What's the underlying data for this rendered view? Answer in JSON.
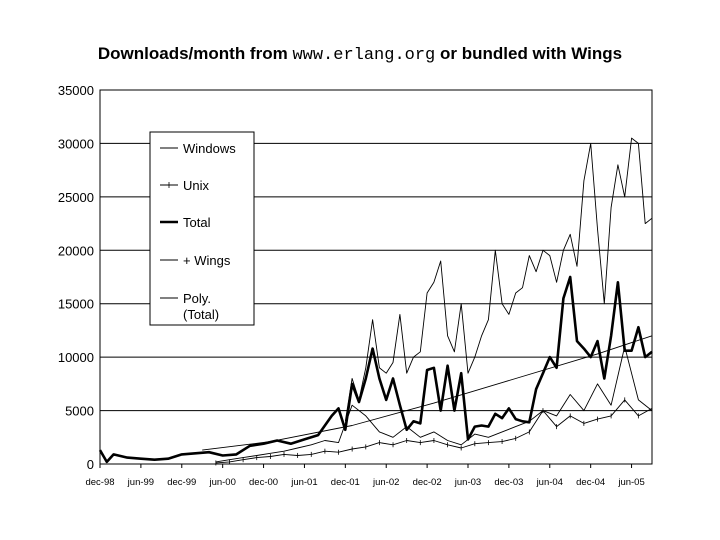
{
  "chart_data": {
    "type": "line",
    "title": {
      "prefix": "Downloads/month from",
      "url": "www.erlang.org",
      "suffix": "or bundled with Wings"
    },
    "xlabel": "",
    "ylabel": "",
    "ylim": [
      0,
      35000
    ],
    "y_ticks": [
      0,
      5000,
      10000,
      15000,
      20000,
      25000,
      30000,
      35000
    ],
    "x_tick_labels": [
      "dec-98",
      "jun-99",
      "dec-99",
      "jun-00",
      "dec-00",
      "jun-01",
      "dec-01",
      "jun-02",
      "dec-02",
      "jun-03",
      "dec-03",
      "jun-04",
      "dec-04",
      "jun-05"
    ],
    "x_range_months": [
      "1998-12",
      "2005-09"
    ],
    "grid": "horizontal",
    "legend_position": "upper-left inside plot",
    "series": [
      {
        "name": "Windows",
        "style": "thin",
        "x": [
          "2000-05",
          "2000-07",
          "2000-09",
          "2000-11",
          "2001-01",
          "2001-03",
          "2001-05",
          "2001-07",
          "2001-09",
          "2001-11",
          "2002-01",
          "2002-03",
          "2002-05",
          "2002-07",
          "2002-09",
          "2002-11",
          "2003-01",
          "2003-03",
          "2003-05",
          "2003-07",
          "2003-09",
          "2003-11",
          "2004-01",
          "2004-03",
          "2004-05",
          "2004-07",
          "2004-09",
          "2004-11",
          "2005-01",
          "2005-03",
          "2005-05",
          "2005-07",
          "2005-09"
        ],
        "values": [
          200,
          400,
          600,
          800,
          1000,
          1200,
          1500,
          1800,
          2200,
          2000,
          5500,
          4500,
          3000,
          2500,
          3500,
          2500,
          3000,
          2200,
          1800,
          2800,
          2500,
          3000,
          3500,
          4000,
          5000,
          4500,
          6500,
          5000,
          7500,
          5500,
          11000,
          6000,
          5000
        ]
      },
      {
        "name": "Unix",
        "style": "thin-marked",
        "x": [
          "2000-05",
          "2000-07",
          "2000-09",
          "2000-11",
          "2001-01",
          "2001-03",
          "2001-05",
          "2001-07",
          "2001-09",
          "2001-11",
          "2002-01",
          "2002-03",
          "2002-05",
          "2002-07",
          "2002-09",
          "2002-11",
          "2003-01",
          "2003-03",
          "2003-05",
          "2003-07",
          "2003-09",
          "2003-11",
          "2004-01",
          "2004-03",
          "2004-05",
          "2004-07",
          "2004-09",
          "2004-11",
          "2005-01",
          "2005-03",
          "2005-05",
          "2005-07",
          "2005-09"
        ],
        "values": [
          100,
          200,
          400,
          600,
          700,
          900,
          800,
          900,
          1200,
          1100,
          1400,
          1600,
          2000,
          1800,
          2200,
          2000,
          2200,
          1800,
          1500,
          1900,
          2000,
          2100,
          2400,
          3000,
          5000,
          3500,
          4500,
          3800,
          4200,
          4500,
          6000,
          4500,
          5200
        ]
      },
      {
        "name": "Total",
        "style": "thick",
        "x": [
          "1998-12",
          "1999-01",
          "1999-02",
          "1999-04",
          "1999-06",
          "1999-08",
          "1999-10",
          "1999-12",
          "2000-02",
          "2000-04",
          "2000-06",
          "2000-08",
          "2000-10",
          "2000-12",
          "2001-02",
          "2001-04",
          "2001-06",
          "2001-08",
          "2001-10",
          "2001-11",
          "2001-12",
          "2002-01",
          "2002-02",
          "2002-03",
          "2002-04",
          "2002-05",
          "2002-06",
          "2002-07",
          "2002-08",
          "2002-09",
          "2002-10",
          "2002-11",
          "2002-12",
          "2003-01",
          "2003-02",
          "2003-03",
          "2003-04",
          "2003-05",
          "2003-06",
          "2003-07",
          "2003-08",
          "2003-09",
          "2003-10",
          "2003-11",
          "2003-12",
          "2004-01",
          "2004-02",
          "2004-03",
          "2004-04",
          "2004-05",
          "2004-06",
          "2004-07",
          "2004-08",
          "2004-09",
          "2004-10",
          "2004-11",
          "2004-12",
          "2005-01",
          "2005-02",
          "2005-03",
          "2005-04",
          "2005-05",
          "2005-06",
          "2005-07",
          "2005-08",
          "2005-09"
        ],
        "values": [
          1300,
          200,
          900,
          600,
          500,
          400,
          500,
          900,
          1000,
          1100,
          800,
          900,
          1700,
          1900,
          2200,
          1900,
          2300,
          2700,
          4500,
          5200,
          3200,
          7500,
          5800,
          8000,
          10800,
          8000,
          6000,
          8000,
          5500,
          3200,
          4000,
          3800,
          8800,
          9000,
          5000,
          9200,
          5000,
          8500,
          2300,
          3500,
          3600,
          3500,
          4700,
          4300,
          5200,
          4200,
          4000,
          3900,
          7000,
          8500,
          10000,
          9000,
          15500,
          17500,
          11500,
          10800,
          10000,
          11500,
          8000,
          12000,
          17000,
          10600,
          10600,
          12800,
          10000,
          10500
        ]
      },
      {
        "name": "+ Wings",
        "style": "thin",
        "x": [
          "2001-12",
          "2002-01",
          "2002-02",
          "2002-03",
          "2002-04",
          "2002-05",
          "2002-06",
          "2002-07",
          "2002-08",
          "2002-09",
          "2002-10",
          "2002-11",
          "2002-12",
          "2003-01",
          "2003-02",
          "2003-03",
          "2003-04",
          "2003-05",
          "2003-06",
          "2003-07",
          "2003-08",
          "2003-09",
          "2003-10",
          "2003-11",
          "2003-12",
          "2004-01",
          "2004-02",
          "2004-03",
          "2004-04",
          "2004-05",
          "2004-06",
          "2004-07",
          "2004-08",
          "2004-09",
          "2004-10",
          "2004-11",
          "2004-12",
          "2005-01",
          "2005-02",
          "2005-03",
          "2005-04",
          "2005-05",
          "2005-06",
          "2005-07",
          "2005-08",
          "2005-09"
        ],
        "values": [
          4000,
          8000,
          6000,
          9000,
          13500,
          9000,
          8500,
          9500,
          14000,
          8500,
          10000,
          10500,
          16000,
          17000,
          19000,
          12000,
          10500,
          15000,
          8500,
          10000,
          12000,
          13500,
          20000,
          15000,
          14000,
          16000,
          16500,
          19500,
          18000,
          20000,
          19500,
          17000,
          20000,
          21500,
          18500,
          26500,
          30000,
          22000,
          15000,
          24000,
          28000,
          25000,
          30500,
          30000,
          22500,
          23000
        ]
      },
      {
        "name": "Poly. (Total)",
        "legend_lines": [
          "Poly.",
          "(Total)"
        ],
        "style": "thin-trend",
        "x": [
          "2000-03",
          "2001-01",
          "2002-01",
          "2003-01",
          "2004-01",
          "2005-01",
          "2005-09"
        ],
        "values": [
          1300,
          2100,
          3600,
          5700,
          8000,
          10300,
          12000
        ]
      }
    ]
  },
  "colors": {
    "background": "#ffffff",
    "lines": "#000000",
    "grid": "#000000"
  }
}
